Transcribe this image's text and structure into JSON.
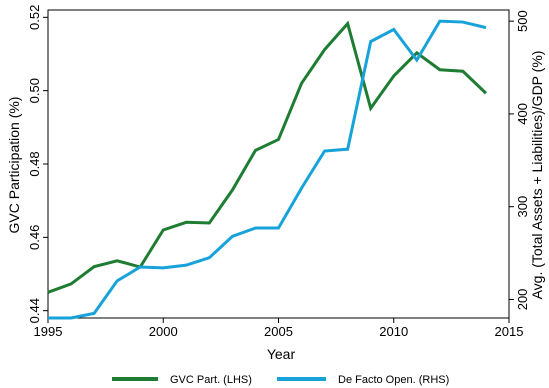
{
  "chart_data": {
    "type": "line",
    "title": "",
    "xlabel": "Year",
    "ylabel_left": "GVC Participation (%)",
    "ylabel_right": "Avg. (Total Assets + Liabilities)/GDP (%)",
    "xlim": [
      1995,
      2015
    ],
    "ylim_left": [
      0.438,
      0.522
    ],
    "ylim_right": [
      180,
      512
    ],
    "x_ticks": [
      1995,
      2000,
      2005,
      2010,
      2015
    ],
    "y_ticks_left": [
      0.44,
      0.46,
      0.48,
      0.5,
      0.52
    ],
    "y_tick_labels_left": [
      "0.44",
      "0.46",
      "0.48",
      "0.50",
      "0.52"
    ],
    "y_ticks_right": [
      200,
      300,
      400,
      500
    ],
    "y_tick_labels_right": [
      "200",
      "300",
      "400",
      "500"
    ],
    "grid": false,
    "legend_position": "bottom",
    "x": [
      1995,
      1996,
      1997,
      1998,
      1999,
      2000,
      2001,
      2002,
      2003,
      2004,
      2005,
      2006,
      2007,
      2008,
      2009,
      2010,
      2011,
      2012,
      2013,
      2014
    ],
    "series": [
      {
        "name": "GVC Part. (LHS)",
        "axis": "left",
        "color": "#1e7d32",
        "values": [
          0.445,
          0.4473,
          0.452,
          0.4536,
          0.4519,
          0.462,
          0.4641,
          0.4639,
          0.4729,
          0.4837,
          0.4867,
          0.502,
          0.5112,
          0.5183,
          0.4952,
          0.504,
          0.5103,
          0.5057,
          0.5053,
          0.4993
        ]
      },
      {
        "name": "De Facto Open. (RHS)",
        "axis": "right",
        "color": "#17a3d9",
        "values": [
          180,
          180,
          185,
          220,
          235,
          234,
          237,
          245,
          268,
          277,
          277,
          320,
          360,
          362,
          478,
          491,
          458,
          500,
          499,
          493
        ]
      }
    ]
  }
}
